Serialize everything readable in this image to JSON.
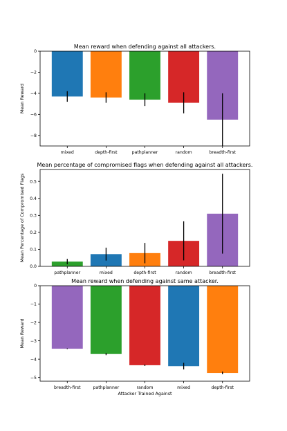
{
  "chart_data": [
    {
      "type": "bar",
      "title": "Mean reward when defending against all attackers.",
      "xlabel": "",
      "ylabel": "Mean Reward",
      "ylim": [
        -9.0,
        0.0
      ],
      "yticks": [
        0,
        -2,
        -4,
        -6,
        -8
      ],
      "ytick_labels": [
        "0",
        "−2",
        "−4",
        "−6",
        "−8"
      ],
      "categories": [
        "mixed",
        "depth-first",
        "pathplanner",
        "random",
        "breadth-first"
      ],
      "values": [
        -4.3,
        -4.4,
        -4.6,
        -4.9,
        -6.5
      ],
      "error": [
        0.5,
        0.5,
        0.6,
        1.0,
        2.5
      ],
      "colors": [
        "#1f77b4",
        "#ff7f0e",
        "#2ca02c",
        "#d62728",
        "#9467bd"
      ],
      "grid": false
    },
    {
      "type": "bar",
      "title": "Mean percentage of compromised flags when defending against all attackers.",
      "xlabel": "",
      "ylabel": "Mean Percentage of Compromised Flags",
      "ylim": [
        0.0,
        0.57
      ],
      "yticks": [
        0,
        0.1,
        0.2,
        0.3,
        0.4,
        0.5
      ],
      "ytick_labels": [
        "0.0",
        "0.1",
        "0.2",
        "0.3",
        "0.4",
        "0.5"
      ],
      "categories": [
        "pathplanner",
        "mixed",
        "depth-first",
        "random",
        "breadth-first"
      ],
      "values": [
        0.028,
        0.072,
        0.078,
        0.15,
        0.31
      ],
      "error": [
        0.016,
        0.038,
        0.06,
        0.115,
        0.235
      ],
      "colors": [
        "#2ca02c",
        "#1f77b4",
        "#ff7f0e",
        "#d62728",
        "#9467bd"
      ],
      "grid": false
    },
    {
      "type": "bar",
      "title": "Mean reward when defending against same attacker.",
      "xlabel": "Attacker Trained Against",
      "ylabel": "Mean Reward",
      "ylim": [
        -5.2,
        0.0
      ],
      "yticks": [
        0,
        -1,
        -2,
        -3,
        -4,
        -5
      ],
      "ytick_labels": [
        "0",
        "−1",
        "−2",
        "−3",
        "−4",
        "−5"
      ],
      "categories": [
        "breadth-first",
        "pathplanner",
        "random",
        "mixed",
        "depth-first"
      ],
      "values": [
        -3.43,
        -3.72,
        -4.33,
        -4.38,
        -4.75
      ],
      "error": [
        0.02,
        0.06,
        0.04,
        0.18,
        0.07
      ],
      "colors": [
        "#9467bd",
        "#2ca02c",
        "#d62728",
        "#1f77b4",
        "#ff7f0e"
      ],
      "grid": false
    }
  ]
}
